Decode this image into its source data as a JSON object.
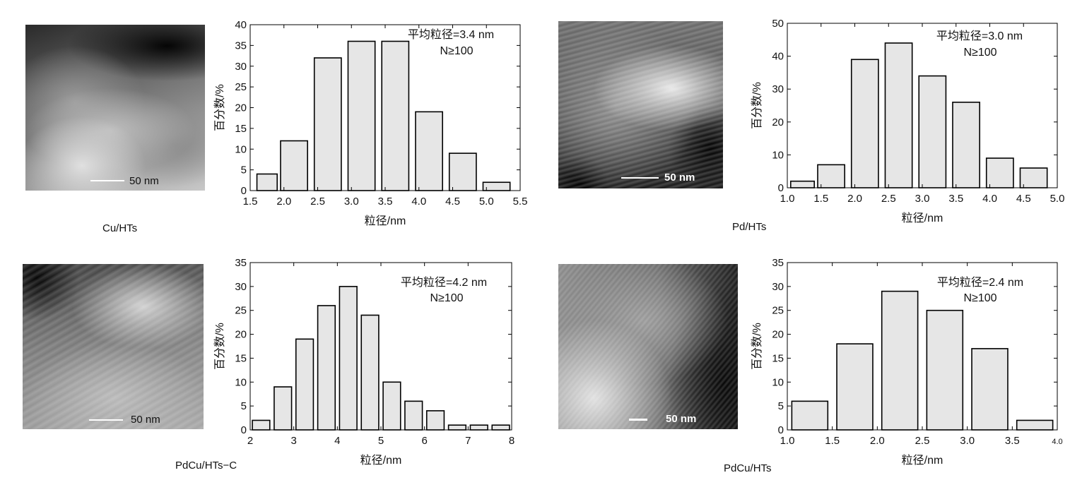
{
  "panels": [
    {
      "caption": "Cu/HTs",
      "scale_label": "50 nm"
    },
    {
      "caption": "Pd/HTs",
      "scale_label": "50 nm"
    },
    {
      "caption": "PdCu/HTs−C",
      "scale_label": "50 nm"
    },
    {
      "caption": "PdCu/HTs",
      "scale_label": "50 nm"
    }
  ],
  "chart_data": [
    {
      "type": "bar",
      "xlabel": "粒径/nm",
      "ylabel": "百分数/%",
      "annotation": [
        "平均粒径=3.4 nm",
        "N≥100"
      ],
      "xlim": [
        1.5,
        5.5
      ],
      "ylim": [
        0,
        40
      ],
      "xticks": [
        "1.5",
        "2.0",
        "2.5",
        "3.0",
        "3.5",
        "4.0",
        "4.5",
        "5.0",
        "5.5"
      ],
      "yticks": [
        "0",
        "5",
        "10",
        "15",
        "20",
        "25",
        "30",
        "35",
        "40"
      ],
      "bins": [
        [
          1.6,
          1.9
        ],
        [
          1.95,
          2.35
        ],
        [
          2.45,
          2.85
        ],
        [
          2.95,
          3.35
        ],
        [
          3.45,
          3.85
        ],
        [
          3.95,
          4.35
        ],
        [
          4.45,
          4.85
        ],
        [
          4.95,
          5.35
        ]
      ],
      "values": [
        4,
        12,
        32,
        36,
        36,
        19,
        9,
        2
      ]
    },
    {
      "type": "bar",
      "xlabel": "粒径/nm",
      "ylabel": "百分数/%",
      "annotation": [
        "平均粒径=3.0 nm",
        "N≥100"
      ],
      "xlim": [
        1.0,
        5.0
      ],
      "ylim": [
        0,
        50
      ],
      "xticks": [
        "1.0",
        "1.5",
        "2.0",
        "2.5",
        "3.0",
        "3.5",
        "4.0",
        "4.5",
        "5.0"
      ],
      "yticks": [
        "0",
        "10",
        "20",
        "30",
        "40",
        "50"
      ],
      "bins": [
        [
          1.05,
          1.4
        ],
        [
          1.45,
          1.85
        ],
        [
          1.95,
          2.35
        ],
        [
          2.45,
          2.85
        ],
        [
          2.95,
          3.35
        ],
        [
          3.45,
          3.85
        ],
        [
          3.95,
          4.35
        ],
        [
          4.45,
          4.85
        ]
      ],
      "values": [
        2,
        7,
        39,
        44,
        34,
        26,
        9,
        6
      ]
    },
    {
      "type": "bar",
      "xlabel": "粒径/nm",
      "ylabel": "百分数/%",
      "annotation": [
        "平均粒径=4.2 nm",
        "N≥100"
      ],
      "xlim": [
        2,
        8
      ],
      "ylim": [
        0,
        35
      ],
      "xticks": [
        "2",
        "3",
        "4",
        "5",
        "6",
        "7",
        "8"
      ],
      "yticks": [
        "0",
        "5",
        "10",
        "15",
        "20",
        "25",
        "30",
        "35"
      ],
      "bins": [
        [
          2.05,
          2.45
        ],
        [
          2.55,
          2.95
        ],
        [
          3.05,
          3.45
        ],
        [
          3.55,
          3.95
        ],
        [
          4.05,
          4.45
        ],
        [
          4.55,
          4.95
        ],
        [
          5.05,
          5.45
        ],
        [
          5.55,
          5.95
        ],
        [
          6.05,
          6.45
        ],
        [
          6.55,
          6.95
        ],
        [
          7.05,
          7.45
        ],
        [
          7.55,
          7.95
        ]
      ],
      "values": [
        2,
        9,
        19,
        26,
        30,
        24,
        10,
        6,
        4,
        1,
        1,
        1
      ]
    },
    {
      "type": "bar",
      "xlabel": "粒径/nm",
      "ylabel": "百分数/%",
      "annotation": [
        "平均粒径=2.4 nm",
        "N≥100"
      ],
      "xlim": [
        1.0,
        4.0
      ],
      "ylim": [
        0,
        35
      ],
      "xticks": [
        "1.0",
        "1.5",
        "2.0",
        "2.5",
        "3.0",
        "3.5",
        "4.0"
      ],
      "yticks": [
        "0",
        "5",
        "10",
        "15",
        "20",
        "25",
        "30",
        "35"
      ],
      "bins": [
        [
          1.05,
          1.45
        ],
        [
          1.55,
          1.95
        ],
        [
          2.05,
          2.45
        ],
        [
          2.55,
          2.95
        ],
        [
          3.05,
          3.45
        ],
        [
          3.55,
          3.95
        ]
      ],
      "values": [
        6,
        18,
        29,
        25,
        17,
        2
      ]
    }
  ]
}
